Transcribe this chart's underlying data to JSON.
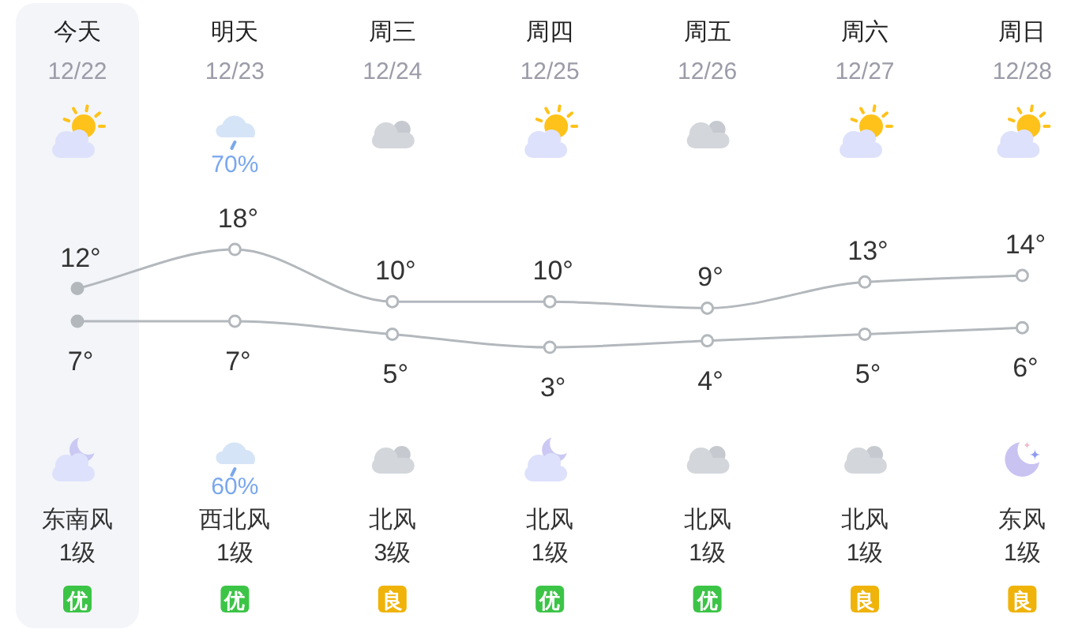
{
  "chart_data": {
    "type": "line",
    "categories": [
      "今天\n12/22",
      "明天\n12/23",
      "周三\n12/24",
      "周四\n12/25",
      "周五\n12/26",
      "周六\n12/27",
      "周日\n12/28"
    ],
    "series": [
      {
        "color": "#b3b8bd",
        "values": [
          12,
          18,
          10,
          10,
          9,
          13,
          14
        ],
        "value_labels": [
          "12°",
          "18°",
          "10°",
          "10°",
          "9°",
          "13°",
          "14°"
        ]
      },
      {
        "color": "#b3b8bd",
        "values": [
          7,
          7,
          5,
          3,
          4,
          5,
          6
        ],
        "value_labels": [
          "7°",
          "7°",
          "5°",
          "3°",
          "4°",
          "5°",
          "6°"
        ]
      }
    ],
    "marker": "circle",
    "bands": [
      {
        "axis": "x",
        "from": "今天\n12/22",
        "to": "今天\n12/22",
        "color": "#f3f5f9"
      }
    ],
    "annotations": [
      "70%",
      "60%",
      "东南风\n1级",
      "西北风\n1级",
      "北风\n3级",
      "北风\n1级",
      "北风\n1级",
      "北风\n1级",
      "东风\n1级",
      "优",
      "优",
      "良",
      "优",
      "优",
      "良",
      "良"
    ]
  }
}
